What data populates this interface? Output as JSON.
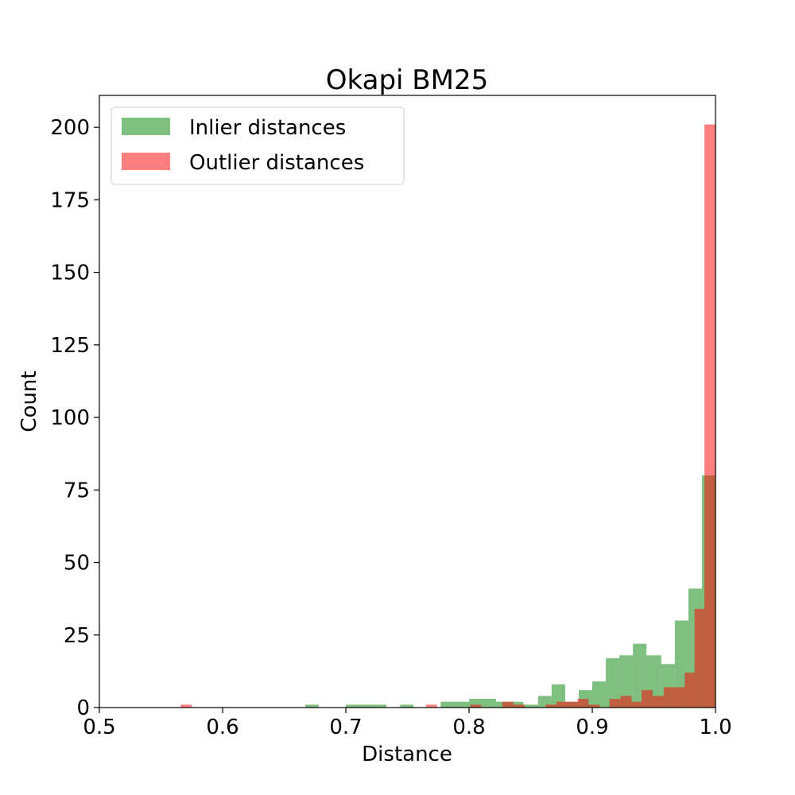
{
  "chart_data": {
    "type": "bar",
    "title": "Okapi BM25",
    "xlabel": "Distance",
    "ylabel": "Count",
    "xlim": [
      0.5,
      1.0
    ],
    "ylim": [
      0,
      211
    ],
    "xticks": [
      "0.5",
      "0.6",
      "0.7",
      "0.8",
      "0.9",
      "1.0"
    ],
    "yticks": [
      "0",
      "25",
      "50",
      "75",
      "100",
      "125",
      "150",
      "175",
      "200"
    ],
    "grid": false,
    "legend_position": "upper-left",
    "series": [
      {
        "name": "Inlier distances",
        "color": "#008000",
        "opacity": 0.5,
        "bins": [
          [
            0.667,
            0.678,
            1
          ],
          [
            0.7,
            0.733,
            1
          ],
          [
            0.744,
            0.755,
            1
          ],
          [
            0.777,
            0.8,
            2
          ],
          [
            0.8,
            0.822,
            3
          ],
          [
            0.822,
            0.833,
            2
          ],
          [
            0.833,
            0.844,
            2
          ],
          [
            0.844,
            0.856,
            1
          ],
          [
            0.856,
            0.867,
            4
          ],
          [
            0.867,
            0.878,
            8
          ],
          [
            0.878,
            0.889,
            2
          ],
          [
            0.889,
            0.9,
            6
          ],
          [
            0.9,
            0.911,
            9
          ],
          [
            0.911,
            0.922,
            17
          ],
          [
            0.922,
            0.933,
            18
          ],
          [
            0.933,
            0.944,
            22
          ],
          [
            0.944,
            0.956,
            18
          ],
          [
            0.956,
            0.967,
            15
          ],
          [
            0.967,
            0.978,
            30
          ],
          [
            0.978,
            0.989,
            41
          ],
          [
            0.989,
            1.0,
            80
          ]
        ]
      },
      {
        "name": "Outlier distances",
        "color": "#ff0000",
        "opacity": 0.5,
        "bins": [
          [
            0.566,
            0.575,
            1
          ],
          [
            0.765,
            0.774,
            1
          ],
          [
            0.801,
            0.81,
            1
          ],
          [
            0.827,
            0.836,
            2
          ],
          [
            0.836,
            0.845,
            1
          ],
          [
            0.862,
            0.871,
            1
          ],
          [
            0.871,
            0.88,
            2
          ],
          [
            0.88,
            0.888,
            2
          ],
          [
            0.888,
            0.897,
            3
          ],
          [
            0.897,
            0.906,
            1
          ],
          [
            0.914,
            0.923,
            3
          ],
          [
            0.923,
            0.932,
            4
          ],
          [
            0.932,
            0.94,
            2
          ],
          [
            0.94,
            0.949,
            6
          ],
          [
            0.949,
            0.958,
            4
          ],
          [
            0.958,
            0.966,
            7
          ],
          [
            0.966,
            0.975,
            7
          ],
          [
            0.975,
            0.983,
            12
          ],
          [
            0.983,
            0.991,
            34
          ],
          [
            0.991,
            1.0,
            201
          ]
        ]
      }
    ]
  }
}
